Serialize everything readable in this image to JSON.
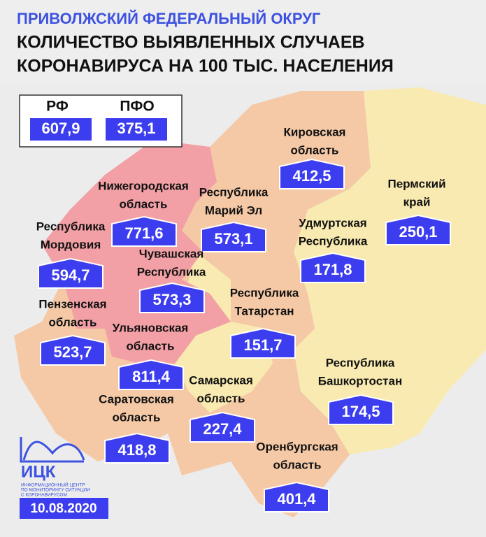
{
  "header": {
    "title": "ПРИВОЛЖСКИЙ ФЕДЕРАЛЬНЫЙ ОКРУГ",
    "subtitle": [
      "КОЛИЧЕСТВО ВЫЯВЛЕННЫХ СЛУЧАЕВ",
      "КОРОНАВИРУСА НА 100 ТЫС. НАСЕЛЕНИЯ"
    ]
  },
  "summary": [
    {
      "label": "РФ",
      "value": "607,9"
    },
    {
      "label": "ПФО",
      "value": "375,1"
    }
  ],
  "regions": [
    {
      "name": [
        "Кировская",
        "область"
      ],
      "value": "412,5"
    },
    {
      "name": [
        "Пермский",
        "край"
      ],
      "value": "250,1"
    },
    {
      "name": [
        "Нижегородская",
        "область"
      ],
      "value": "771,6"
    },
    {
      "name": [
        "Республика",
        "Марий Эл"
      ],
      "value": "573,1"
    },
    {
      "name": [
        "Удмуртская",
        "Республика"
      ],
      "value": "171,8"
    },
    {
      "name": [
        "Республика",
        "Мордовия"
      ],
      "value": "594,7"
    },
    {
      "name": [
        "Чувашская",
        "Республика"
      ],
      "value": "573,3"
    },
    {
      "name": [
        "Республика",
        "Татарстан"
      ],
      "value": "151,7"
    },
    {
      "name": [
        "Пензенская",
        "область"
      ],
      "value": "523,7"
    },
    {
      "name": [
        "Ульяновская",
        "область"
      ],
      "value": "811,4"
    },
    {
      "name": [
        "Республика",
        "Башкортостан"
      ],
      "value": "174,5"
    },
    {
      "name": [
        "Самарская",
        "область"
      ],
      "value": "227,4"
    },
    {
      "name": [
        "Саратовская",
        "область"
      ],
      "value": "418,8"
    },
    {
      "name": [
        "Оренбургская",
        "область"
      ],
      "value": "401,4"
    }
  ],
  "logo": {
    "name": "ИЦК",
    "caption": [
      "ИНФОРМАЦИОННЫЙ ЦЕНТР",
      "ПО МОНИТОРИНГУ СИТУАЦИИ",
      "С КОРОНАВИРУСОМ"
    ]
  },
  "date": "10.08.2020"
}
